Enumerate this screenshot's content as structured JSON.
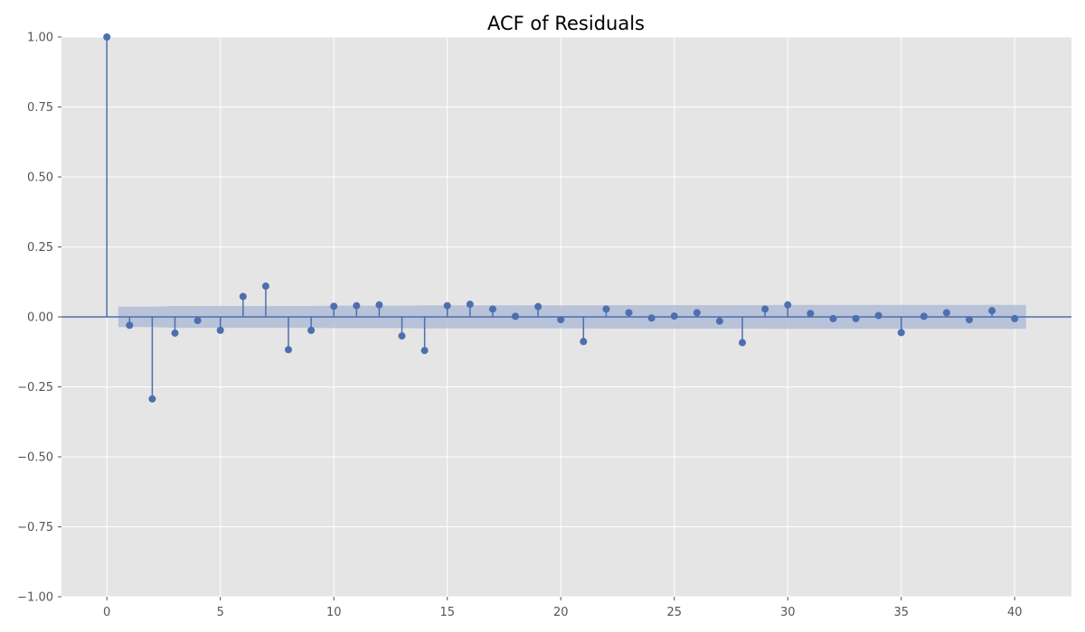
{
  "chart_data": {
    "type": "stem",
    "title": "ACF of Residuals",
    "xlabel": "",
    "ylabel": "",
    "xlim": [
      -2,
      42.5
    ],
    "ylim": [
      -1.0,
      1.0
    ],
    "xticks": [
      0,
      5,
      10,
      15,
      20,
      25,
      30,
      35,
      40
    ],
    "xtick_labels": [
      "0",
      "5",
      "10",
      "15",
      "20",
      "25",
      "30",
      "35",
      "40"
    ],
    "yticks": [
      -1.0,
      -0.75,
      -0.5,
      -0.25,
      0.0,
      0.25,
      0.5,
      0.75,
      1.0
    ],
    "ytick_labels": [
      "−1.00",
      "−0.75",
      "−0.50",
      "−0.25",
      "0.00",
      "0.25",
      "0.50",
      "0.75",
      "1.00"
    ],
    "grid": true,
    "lags": [
      0,
      1,
      2,
      3,
      4,
      5,
      6,
      7,
      8,
      9,
      10,
      11,
      12,
      13,
      14,
      15,
      16,
      17,
      18,
      19,
      20,
      21,
      22,
      23,
      24,
      25,
      26,
      27,
      28,
      29,
      30,
      31,
      32,
      33,
      34,
      35,
      36,
      37,
      38,
      39,
      40
    ],
    "values": [
      1.0,
      -0.03,
      -0.293,
      -0.058,
      -0.013,
      -0.048,
      0.073,
      0.11,
      -0.117,
      -0.048,
      0.038,
      0.04,
      0.043,
      -0.068,
      -0.12,
      0.04,
      0.045,
      0.028,
      0.002,
      0.037,
      -0.01,
      -0.088,
      0.028,
      0.015,
      -0.004,
      0.003,
      0.015,
      -0.015,
      -0.092,
      0.028,
      0.043,
      0.012,
      -0.006,
      -0.006,
      0.005,
      -0.056,
      0.002,
      0.015,
      -0.01,
      0.022,
      -0.006
    ],
    "confidence_band": {
      "lags": [
        0.5,
        2,
        3,
        4,
        5,
        6,
        7,
        8,
        9,
        10,
        11,
        12,
        13,
        14,
        15,
        16,
        17,
        18,
        19,
        20,
        21,
        22,
        23,
        24,
        25,
        26,
        27,
        28,
        29,
        30,
        31,
        32,
        33,
        34,
        35,
        36,
        37,
        38,
        39,
        40.5
      ],
      "upper": [
        0.036,
        0.036,
        0.039,
        0.039,
        0.039,
        0.039,
        0.039,
        0.039,
        0.039,
        0.04,
        0.04,
        0.04,
        0.04,
        0.041,
        0.041,
        0.041,
        0.041,
        0.041,
        0.041,
        0.041,
        0.041,
        0.042,
        0.042,
        0.042,
        0.042,
        0.042,
        0.042,
        0.042,
        0.042,
        0.043,
        0.043,
        0.043,
        0.043,
        0.043,
        0.043,
        0.043,
        0.043,
        0.043,
        0.043,
        0.043
      ],
      "color": "#b0bcd6"
    },
    "colors": {
      "stem": "#4c6faf",
      "marker": "#4c6faf",
      "plot_background": "#e5e5e5",
      "grid": "#ffffff",
      "zero_line": "#4c6faf"
    }
  }
}
